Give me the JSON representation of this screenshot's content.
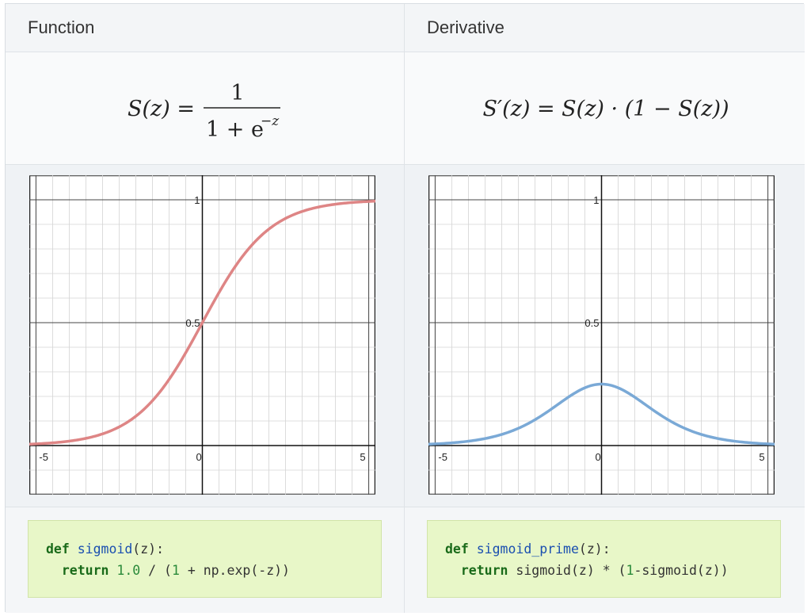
{
  "headers": {
    "function": "Function",
    "derivative": "Derivative"
  },
  "formulas": {
    "function": {
      "lhs": "S(z) =",
      "numerator": "1",
      "denominator": "1 + e",
      "exponent": "−z"
    },
    "derivative": {
      "text": "S′(z) = S(z) · (1 − S(z))"
    }
  },
  "code": {
    "function": {
      "kw1": "def",
      "name": "sigmoid",
      "args": "(z):",
      "kw2": "return",
      "num1": "1.0",
      "mid": " / (",
      "num2": "1",
      "tail": " + np.exp(-z))"
    },
    "derivative": {
      "kw1": "def",
      "name": "sigmoid_prime",
      "args": "(z):",
      "kw2": "return",
      "body1": " sigmoid(z) * (",
      "num": "1",
      "body2": "-sigmoid(z))"
    }
  },
  "chart_data": [
    {
      "type": "line",
      "function": "sigmoid",
      "xlim": [
        -5.2,
        5.2
      ],
      "ylim": [
        -0.2,
        1.1
      ],
      "x_ticks": [
        "-5",
        "0",
        "5"
      ],
      "y_ticks": [
        "0.5",
        "1"
      ],
      "grid": true,
      "color": "#de8585",
      "series": [
        {
          "x": [
            -5,
            -4,
            -3,
            -2,
            -1,
            0,
            1,
            2,
            3,
            4,
            5
          ],
          "y": [
            0.007,
            0.018,
            0.047,
            0.119,
            0.269,
            0.5,
            0.731,
            0.881,
            0.953,
            0.982,
            0.993
          ]
        }
      ]
    },
    {
      "type": "line",
      "function": "sigmoid_prime",
      "xlim": [
        -5.2,
        5.2
      ],
      "ylim": [
        -0.2,
        1.1
      ],
      "x_ticks": [
        "-5",
        "0",
        "5"
      ],
      "y_ticks": [
        "0.5",
        "1"
      ],
      "grid": true,
      "color": "#7aa9d6",
      "series": [
        {
          "x": [
            -5,
            -4,
            -3,
            -2,
            -1,
            0,
            1,
            2,
            3,
            4,
            5
          ],
          "y": [
            0.0066,
            0.0177,
            0.0452,
            0.105,
            0.197,
            0.25,
            0.197,
            0.105,
            0.0452,
            0.0177,
            0.0066
          ]
        }
      ]
    }
  ]
}
